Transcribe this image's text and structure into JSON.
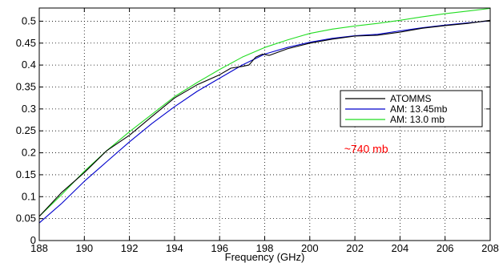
{
  "chart_data": {
    "type": "line",
    "title": "",
    "xlabel": "Frequency (GHz)",
    "ylabel": "",
    "xlim": [
      188,
      208
    ],
    "ylim": [
      0,
      0.53
    ],
    "grid": true,
    "grid_style": "dotted",
    "legend_position": "center-right",
    "x_ticks": [
      188,
      190,
      192,
      194,
      196,
      198,
      200,
      202,
      204,
      206,
      208
    ],
    "x_tick_labels": [
      "188",
      "190",
      "192",
      "194",
      "196",
      "198",
      "200",
      "202",
      "204",
      "206",
      "208"
    ],
    "y_ticks": [
      0,
      0.05,
      0.1,
      0.15,
      0.2,
      0.25,
      0.3,
      0.35,
      0.4,
      0.45,
      0.5
    ],
    "y_tick_labels": [
      "0",
      "0.05",
      "0.1",
      "0.15",
      "0.2",
      "0.25",
      "0.3",
      "0.35",
      "0.4",
      "0.45",
      "0.5"
    ],
    "annotation": {
      "text": "~740 mb",
      "color": "#ff0000",
      "x": 202.5,
      "y": 0.2
    },
    "series": [
      {
        "name": "ATOMMS",
        "color": "#000000",
        "x": [
          188,
          189,
          190,
          191,
          192,
          193,
          194,
          195,
          196,
          196.5,
          197,
          197.3,
          197.6,
          197.9,
          198.2,
          199,
          200,
          201,
          202,
          203,
          204,
          205,
          206,
          207,
          208
        ],
        "y": [
          0.055,
          0.11,
          0.155,
          0.205,
          0.24,
          0.283,
          0.325,
          0.355,
          0.378,
          0.393,
          0.397,
          0.4,
          0.418,
          0.425,
          0.422,
          0.437,
          0.45,
          0.459,
          0.466,
          0.468,
          0.475,
          0.484,
          0.49,
          0.495,
          0.502
        ]
      },
      {
        "name": "AM: 13.45mb",
        "color": "#0000cc",
        "x": [
          188,
          189,
          190,
          191,
          192,
          193,
          194,
          195,
          196,
          197,
          198,
          199,
          200,
          201,
          202,
          203,
          204,
          205,
          206,
          207,
          208
        ],
        "y": [
          0.04,
          0.085,
          0.135,
          0.18,
          0.225,
          0.267,
          0.305,
          0.34,
          0.37,
          0.4,
          0.425,
          0.44,
          0.452,
          0.461,
          0.467,
          0.47,
          0.478,
          0.485,
          0.491,
          0.496,
          0.501
        ]
      },
      {
        "name": "AM: 13.0 mb",
        "color": "#22dd22",
        "x": [
          188,
          189,
          190,
          191,
          192,
          193,
          194,
          195,
          196,
          197,
          198,
          199,
          200,
          201,
          202,
          203,
          204,
          205,
          206,
          207,
          208
        ],
        "y": [
          0.055,
          0.105,
          0.158,
          0.205,
          0.248,
          0.288,
          0.328,
          0.36,
          0.39,
          0.418,
          0.44,
          0.457,
          0.472,
          0.482,
          0.489,
          0.495,
          0.502,
          0.51,
          0.517,
          0.523,
          0.529
        ]
      }
    ]
  }
}
